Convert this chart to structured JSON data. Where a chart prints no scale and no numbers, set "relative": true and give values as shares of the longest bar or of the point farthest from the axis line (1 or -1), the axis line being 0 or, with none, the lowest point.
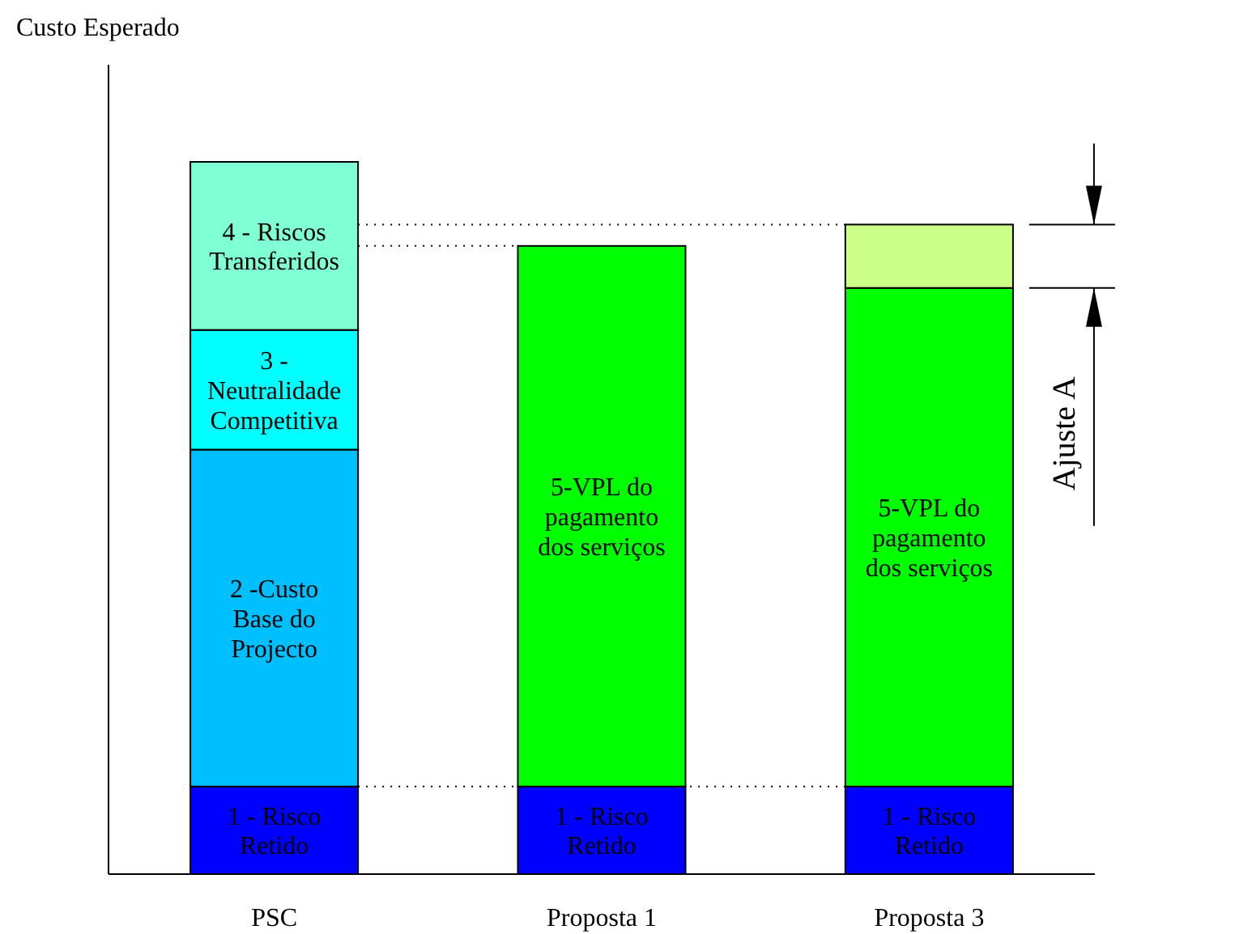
{
  "chart_data": {
    "type": "bar",
    "ylabel": "Custo Esperado",
    "categories": [
      "PSC",
      "Proposta 1",
      "Proposta 3"
    ],
    "stacked": true,
    "relative": true,
    "series": [
      {
        "name": "1 - Risco Retido",
        "color": "#0000ff",
        "values": [
          0.123,
          0.123,
          0.123
        ]
      },
      {
        "name": "2 -Custo Base do Projecto",
        "color": "#00bfff",
        "values": [
          0.473,
          null,
          null
        ]
      },
      {
        "name": "3 - Neutralidade Competitiva",
        "color": "#00ffff",
        "values": [
          0.168,
          null,
          null
        ]
      },
      {
        "name": "4 - Riscos Transferidos",
        "color": "#80ffd4",
        "values": [
          0.236,
          null,
          null
        ]
      },
      {
        "name": "5-VPL do pagamento dos serviços",
        "color": "#00ff00",
        "values": [
          null,
          0.759,
          0.7
        ]
      },
      {
        "color": "#ccff88",
        "values": [
          null,
          null,
          0.089
        ]
      }
    ],
    "ref_lines": [
      {
        "axis": "y",
        "value": 0.123,
        "line_style": "dotted",
        "color": "#000000"
      },
      {
        "axis": "y",
        "value": 0.882,
        "line_style": "dotted",
        "color": "#000000"
      },
      {
        "axis": "y",
        "value": 0.912,
        "line_style": "dotted",
        "color": "#000000"
      }
    ],
    "annotations": [
      "Ajuste A"
    ]
  }
}
